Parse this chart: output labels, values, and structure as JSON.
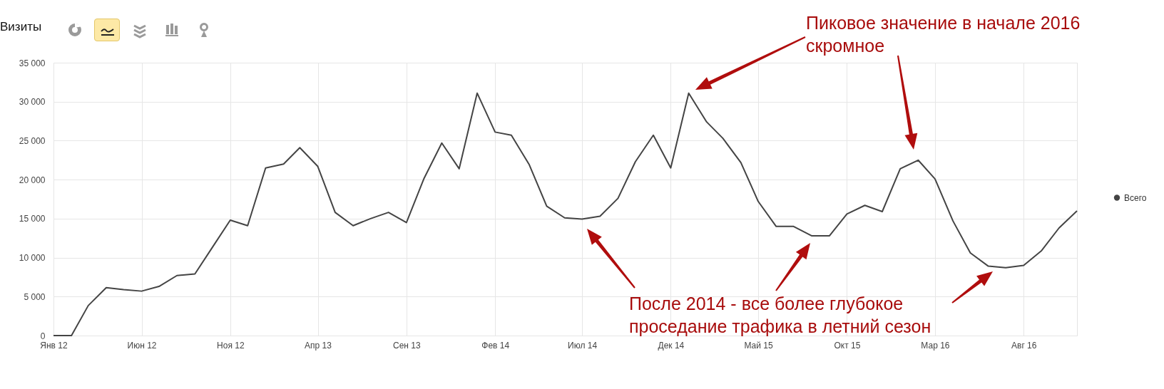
{
  "chart_data": {
    "type": "line",
    "title": "Визиты",
    "x": [
      "2012-01",
      "2012-02",
      "2012-03",
      "2012-04",
      "2012-05",
      "2012-06",
      "2012-07",
      "2012-08",
      "2012-09",
      "2012-10",
      "2012-11",
      "2012-12",
      "2013-01",
      "2013-02",
      "2013-03",
      "2013-04",
      "2013-05",
      "2013-06",
      "2013-07",
      "2013-08",
      "2013-09",
      "2013-10",
      "2013-11",
      "2013-12",
      "2014-01",
      "2014-02",
      "2014-03",
      "2014-04",
      "2014-05",
      "2014-06",
      "2014-07",
      "2014-08",
      "2014-09",
      "2014-10",
      "2014-11",
      "2014-12",
      "2015-01",
      "2015-02",
      "2015-03",
      "2015-04",
      "2015-05",
      "2015-06",
      "2015-07",
      "2015-08",
      "2015-09",
      "2015-10",
      "2015-11",
      "2015-12",
      "2016-01",
      "2016-02",
      "2016-03",
      "2016-04",
      "2016-05",
      "2016-06",
      "2016-07",
      "2016-08",
      "2016-09",
      "2016-10",
      "2016-11"
    ],
    "series": [
      {
        "name": "Всего",
        "color": "#444444",
        "values": [
          0,
          0,
          3850,
          6150,
          5900,
          5700,
          6300,
          7700,
          7900,
          11300,
          14800,
          14100,
          21500,
          22000,
          24100,
          21700,
          15800,
          14100,
          15000,
          15800,
          14500,
          20100,
          24700,
          21400,
          31100,
          26100,
          25700,
          21900,
          16600,
          15100,
          14950,
          15300,
          17600,
          22300,
          25700,
          21500,
          31100,
          27400,
          25300,
          22200,
          17200,
          14000,
          14000,
          12800,
          12800,
          15600,
          16700,
          15900,
          21400,
          22500,
          20100,
          14700,
          10600,
          8900,
          8700,
          9000,
          10900,
          13800,
          16000
        ]
      }
    ],
    "xlim": [
      "2012-01",
      "2016-11"
    ],
    "xticks": [
      {
        "value": "2012-01",
        "label": "Янв 12"
      },
      {
        "value": "2012-06",
        "label": "Июн 12"
      },
      {
        "value": "2012-11",
        "label": "Ноя 12"
      },
      {
        "value": "2013-04",
        "label": "Апр 13"
      },
      {
        "value": "2013-09",
        "label": "Сен 13"
      },
      {
        "value": "2014-02",
        "label": "Фев 14"
      },
      {
        "value": "2014-07",
        "label": "Июл 14"
      },
      {
        "value": "2014-12",
        "label": "Дек 14"
      },
      {
        "value": "2015-05",
        "label": "Май 15"
      },
      {
        "value": "2015-10",
        "label": "Окт 15"
      },
      {
        "value": "2016-03",
        "label": "Мар 16"
      },
      {
        "value": "2016-08",
        "label": "Авг 16"
      }
    ],
    "ylim": [
      0,
      35000
    ],
    "yticks": [
      0,
      {
        "value": 5000,
        "label": "5 000"
      },
      {
        "value": 10000,
        "label": "10 000"
      },
      {
        "value": 15000,
        "label": "15 000"
      },
      {
        "value": 20000,
        "label": "20 000"
      },
      {
        "value": 25000,
        "label": "25 000"
      },
      {
        "value": 30000,
        "label": "30 000"
      },
      {
        "value": 35000,
        "label": "35 000"
      }
    ],
    "grid": true,
    "legend": "right",
    "annotations": [
      "Пиковое значение в начале 2016 скромное",
      "После 2014 - все более глубокое проседание трафика в летний сезон"
    ]
  }
}
